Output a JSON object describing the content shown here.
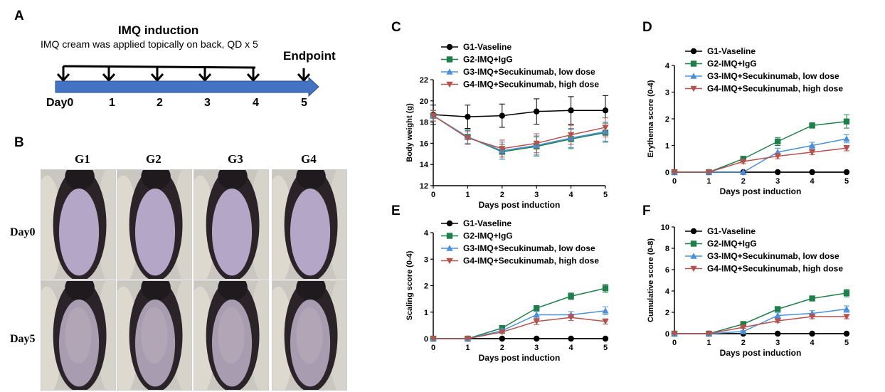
{
  "panels": {
    "a": "A",
    "b": "B",
    "c": "C",
    "d": "D",
    "e": "E",
    "f": "F"
  },
  "timeline": {
    "title": "IMQ induction",
    "subtitle": "IMQ cream was applied topically on back, QD x 5",
    "endpoint": "Endpoint",
    "days": [
      "Day0",
      "1",
      "2",
      "3",
      "4",
      "5"
    ],
    "bar_color": "#4472C4"
  },
  "photos": {
    "groups": [
      "G1",
      "G2",
      "G3",
      "G4"
    ],
    "rows": [
      "Day0",
      "Day5"
    ]
  },
  "series_styles": [
    {
      "color": "#000000",
      "marker": "circle"
    },
    {
      "color": "#1E7F4A",
      "marker": "square"
    },
    {
      "color": "#4A90D9",
      "marker": "triangle-up"
    },
    {
      "color": "#B5524E",
      "marker": "triangle-down"
    }
  ],
  "chart_data": [
    {
      "panel": "C",
      "type": "line",
      "xlabel": "Days post induction",
      "ylabel": "Body weight (g)",
      "x": [
        0,
        1,
        2,
        3,
        4,
        5
      ],
      "xlim": [
        0,
        5
      ],
      "ylim": [
        12,
        22
      ],
      "yticks": [
        "12",
        "14",
        "16",
        "18",
        "20",
        "22"
      ],
      "xticks": [
        "0",
        "1",
        "2",
        "3",
        "4",
        "5"
      ],
      "legend_position": "top",
      "grid": false,
      "series": [
        {
          "name": "G1-Vaseline",
          "values": [
            18.7,
            18.5,
            18.6,
            19.0,
            19.1,
            19.1
          ],
          "errors": [
            0.9,
            1.1,
            1.1,
            1.2,
            1.3,
            1.4
          ]
        },
        {
          "name": "G2-IMQ+IgG",
          "values": [
            18.6,
            16.6,
            15.2,
            15.7,
            16.4,
            17.0
          ],
          "errors": [
            0.5,
            0.7,
            0.7,
            0.9,
            0.9,
            0.9
          ]
        },
        {
          "name": "G3-IMQ+Secukinumab, low dose",
          "values": [
            18.6,
            16.6,
            15.3,
            15.8,
            16.5,
            17.1
          ],
          "errors": [
            0.5,
            0.6,
            0.8,
            0.9,
            0.9,
            0.9
          ]
        },
        {
          "name": "G4-IMQ+Secukinumab, high dose",
          "values": [
            18.6,
            16.5,
            15.5,
            16.0,
            16.8,
            17.5
          ],
          "errors": [
            0.5,
            0.6,
            0.8,
            0.9,
            0.9,
            0.9
          ]
        }
      ]
    },
    {
      "panel": "D",
      "type": "line",
      "xlabel": "Days post induction",
      "ylabel": "Erythema score (0-4)",
      "x": [
        0,
        1,
        2,
        3,
        4,
        5
      ],
      "xlim": [
        0,
        5
      ],
      "ylim": [
        0,
        4
      ],
      "yticks": [
        "0",
        "1",
        "2",
        "3",
        "4"
      ],
      "xticks": [
        "0",
        "1",
        "2",
        "3",
        "4",
        "5"
      ],
      "legend_position": "top",
      "grid": false,
      "series": [
        {
          "name": "G1-Vaseline",
          "values": [
            0,
            0,
            0,
            0,
            0,
            0
          ],
          "errors": [
            0,
            0,
            0,
            0,
            0,
            0
          ]
        },
        {
          "name": "G2-IMQ+IgG",
          "values": [
            0,
            0,
            0.5,
            1.15,
            1.75,
            1.9
          ],
          "errors": [
            0,
            0,
            0.05,
            0.15,
            0.1,
            0.25
          ]
        },
        {
          "name": "G3-IMQ+Secukinumab, low dose",
          "values": [
            0,
            0,
            0,
            0.75,
            1.0,
            1.25
          ],
          "errors": [
            0,
            0,
            0,
            0.15,
            0.12,
            0.15
          ]
        },
        {
          "name": "G4-IMQ+Secukinumab, high dose",
          "values": [
            0,
            0,
            0.4,
            0.6,
            0.75,
            0.9
          ],
          "errors": [
            0,
            0,
            0.08,
            0.1,
            0.1,
            0.1
          ]
        }
      ]
    },
    {
      "panel": "E",
      "type": "line",
      "xlabel": "Days post induction",
      "ylabel": "Scaling score (0-4)",
      "x": [
        0,
        1,
        2,
        3,
        4,
        5
      ],
      "xlim": [
        0,
        5
      ],
      "ylim": [
        0,
        4
      ],
      "yticks": [
        "0",
        "1",
        "2",
        "3",
        "4"
      ],
      "xticks": [
        "0",
        "1",
        "2",
        "3",
        "4",
        "5"
      ],
      "legend_position": "top",
      "grid": false,
      "series": [
        {
          "name": "G1-Vaseline",
          "values": [
            0,
            0,
            0,
            0,
            0,
            0
          ],
          "errors": [
            0,
            0,
            0,
            0,
            0,
            0
          ]
        },
        {
          "name": "G2-IMQ+IgG",
          "values": [
            0,
            0,
            0.4,
            1.15,
            1.6,
            1.9
          ],
          "errors": [
            0,
            0,
            0.05,
            0.05,
            0.12,
            0.15
          ]
        },
        {
          "name": "G3-IMQ+Secukinumab, low dose",
          "values": [
            0,
            0,
            0.3,
            0.9,
            0.9,
            1.05
          ],
          "errors": [
            0,
            0,
            0.08,
            0.12,
            0.12,
            0.15
          ]
        },
        {
          "name": "G4-IMQ+Secukinumab, high dose",
          "values": [
            0,
            0,
            0.25,
            0.65,
            0.8,
            0.65
          ],
          "errors": [
            0,
            0,
            0.05,
            0.12,
            0.12,
            0.1
          ]
        }
      ]
    },
    {
      "panel": "F",
      "type": "line",
      "xlabel": "Days post induction",
      "ylabel": "Cumulative score (0-8)",
      "x": [
        0,
        1,
        2,
        3,
        4,
        5
      ],
      "xlim": [
        0,
        5
      ],
      "ylim": [
        0,
        10
      ],
      "yticks": [
        "0",
        "2",
        "4",
        "6",
        "8",
        "10"
      ],
      "xticks": [
        "0",
        "1",
        "2",
        "3",
        "4",
        "5"
      ],
      "legend_position": "top",
      "grid": false,
      "series": [
        {
          "name": "G1-Vaseline",
          "values": [
            0,
            0,
            0,
            0,
            0,
            0
          ],
          "errors": [
            0,
            0,
            0,
            0,
            0,
            0
          ]
        },
        {
          "name": "G2-IMQ+IgG",
          "values": [
            0,
            0,
            0.9,
            2.3,
            3.3,
            3.8
          ],
          "errors": [
            0,
            0,
            0.1,
            0.15,
            0.2,
            0.35
          ]
        },
        {
          "name": "G3-IMQ+Secukinumab, low dose",
          "values": [
            0,
            0,
            0.2,
            1.7,
            1.9,
            2.3
          ],
          "errors": [
            0,
            0,
            0.1,
            0.25,
            0.25,
            0.3
          ]
        },
        {
          "name": "G4-IMQ+Secukinumab, high dose",
          "values": [
            0,
            0,
            0.6,
            1.2,
            1.6,
            1.6
          ],
          "errors": [
            0,
            0,
            0.1,
            0.15,
            0.2,
            0.2
          ]
        }
      ]
    }
  ]
}
